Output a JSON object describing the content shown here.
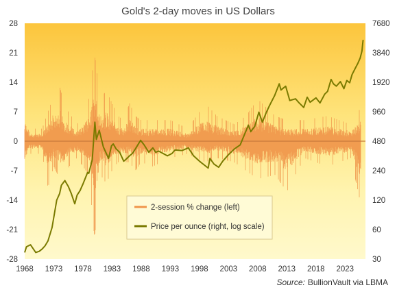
{
  "chart_data": {
    "type": "line",
    "title": "Gold's 2-day moves in US Dollars",
    "x_ticks": [
      "1968",
      "1973",
      "1978",
      "1983",
      "1988",
      "1993",
      "1998",
      "2003",
      "2008",
      "2013",
      "2018",
      "2023"
    ],
    "x_range": [
      1968,
      2026.5
    ],
    "left_axis": {
      "ticks": [
        "28",
        "21",
        "14",
        "7",
        "0",
        "-7",
        "-14",
        "-21",
        "-28"
      ],
      "range": [
        -28,
        28
      ]
    },
    "right_axis": {
      "ticks": [
        "7680",
        "3840",
        "1920",
        "960",
        "480",
        "240",
        "120",
        "60",
        "30"
      ],
      "range": [
        30,
        7680
      ],
      "scale": "log"
    },
    "grid": false,
    "legend_position": "lower-center",
    "series": [
      {
        "name": "2-session % change (left)",
        "axis": "left",
        "color": "#F0954A",
        "style": "oscillating bars",
        "envelope": [
          {
            "year": 1968,
            "max": 8,
            "min": -7
          },
          {
            "year": 1969,
            "max": 3,
            "min": -3
          },
          {
            "year": 1971,
            "max": 3,
            "min": -3
          },
          {
            "year": 1972,
            "max": 7,
            "min": -11
          },
          {
            "year": 1973,
            "max": 11,
            "min": -6
          },
          {
            "year": 1974,
            "max": 13,
            "min": -9
          },
          {
            "year": 1975,
            "max": 8,
            "min": -8
          },
          {
            "year": 1976,
            "max": 6,
            "min": -5
          },
          {
            "year": 1977,
            "max": 4,
            "min": -4
          },
          {
            "year": 1978,
            "max": 6,
            "min": -6
          },
          {
            "year": 1979,
            "max": 10,
            "min": -8
          },
          {
            "year": 1980,
            "max": 20.5,
            "min": -23
          },
          {
            "year": 1981,
            "max": 10,
            "min": -8
          },
          {
            "year": 1982,
            "max": 12,
            "min": -10
          },
          {
            "year": 1983,
            "max": 9,
            "min": -7
          },
          {
            "year": 1984,
            "max": 6,
            "min": -5
          },
          {
            "year": 1985,
            "max": 5,
            "min": -5
          },
          {
            "year": 1986,
            "max": 9,
            "min": -5
          },
          {
            "year": 1987,
            "max": 6,
            "min": -7
          },
          {
            "year": 1988,
            "max": 5,
            "min": -5
          },
          {
            "year": 1990,
            "max": 5,
            "min": -6
          },
          {
            "year": 1993,
            "max": 5,
            "min": -4
          },
          {
            "year": 1996,
            "max": 3,
            "min": -3
          },
          {
            "year": 1999,
            "max": 9,
            "min": -5
          },
          {
            "year": 2001,
            "max": 6,
            "min": -4
          },
          {
            "year": 2004,
            "max": 4,
            "min": -5
          },
          {
            "year": 2006,
            "max": 6,
            "min": -7
          },
          {
            "year": 2008,
            "max": 10,
            "min": -9
          },
          {
            "year": 2011,
            "max": 6,
            "min": -8
          },
          {
            "year": 2013,
            "max": 5,
            "min": -12
          },
          {
            "year": 2016,
            "max": 5,
            "min": -4
          },
          {
            "year": 2020,
            "max": 6,
            "min": -6
          },
          {
            "year": 2024,
            "max": 4,
            "min": -4
          },
          {
            "year": 2025.7,
            "max": 8,
            "min": -15
          }
        ]
      },
      {
        "name": "Price per ounce (right, log scale)",
        "axis": "right",
        "color": "#7A7A00",
        "points": [
          [
            1968.0,
            35
          ],
          [
            1968.3,
            40
          ],
          [
            1969.0,
            42
          ],
          [
            1969.9,
            35
          ],
          [
            1970.5,
            36
          ],
          [
            1971.0,
            38
          ],
          [
            1971.5,
            41
          ],
          [
            1972.0,
            46
          ],
          [
            1972.7,
            63
          ],
          [
            1973.5,
            120
          ],
          [
            1974.0,
            140
          ],
          [
            1974.3,
            170
          ],
          [
            1974.9,
            190
          ],
          [
            1975.5,
            165
          ],
          [
            1976.0,
            140
          ],
          [
            1976.6,
            110
          ],
          [
            1977.0,
            135
          ],
          [
            1977.5,
            150
          ],
          [
            1978.0,
            175
          ],
          [
            1978.8,
            230
          ],
          [
            1979.0,
            225
          ],
          [
            1979.6,
            310
          ],
          [
            1980.05,
            750
          ],
          [
            1980.3,
            500
          ],
          [
            1980.8,
            620
          ],
          [
            1981.5,
            420
          ],
          [
            1982.4,
            320
          ],
          [
            1982.9,
            430
          ],
          [
            1983.2,
            450
          ],
          [
            1983.7,
            400
          ],
          [
            1984.3,
            370
          ],
          [
            1985.0,
            300
          ],
          [
            1985.3,
            310
          ],
          [
            1986.0,
            340
          ],
          [
            1986.5,
            360
          ],
          [
            1987.0,
            400
          ],
          [
            1987.9,
            490
          ],
          [
            1988.5,
            440
          ],
          [
            1989.3,
            370
          ],
          [
            1990.0,
            410
          ],
          [
            1990.5,
            370
          ],
          [
            1991.0,
            380
          ],
          [
            1992.5,
            340
          ],
          [
            1993.3,
            360
          ],
          [
            1993.8,
            390
          ],
          [
            1995.0,
            385
          ],
          [
            1996.1,
            410
          ],
          [
            1997.0,
            340
          ],
          [
            1998.0,
            300
          ],
          [
            1999.5,
            255
          ],
          [
            1999.8,
            320
          ],
          [
            2000.5,
            280
          ],
          [
            2001.3,
            260
          ],
          [
            2002.0,
            300
          ],
          [
            2003.0,
            350
          ],
          [
            2004.0,
            400
          ],
          [
            2005.0,
            440
          ],
          [
            2006.4,
            700
          ],
          [
            2006.8,
            600
          ],
          [
            2007.5,
            680
          ],
          [
            2008.2,
            950
          ],
          [
            2008.8,
            750
          ],
          [
            2009.5,
            950
          ],
          [
            2010.0,
            1100
          ],
          [
            2010.9,
            1400
          ],
          [
            2011.7,
            1850
          ],
          [
            2012.0,
            1600
          ],
          [
            2012.8,
            1750
          ],
          [
            2013.3,
            1380
          ],
          [
            2013.5,
            1250
          ],
          [
            2014.5,
            1300
          ],
          [
            2015.0,
            1200
          ],
          [
            2015.9,
            1060
          ],
          [
            2016.5,
            1350
          ],
          [
            2017.0,
            1200
          ],
          [
            2018.0,
            1330
          ],
          [
            2018.7,
            1180
          ],
          [
            2019.5,
            1450
          ],
          [
            2020.0,
            1550
          ],
          [
            2020.6,
            2050
          ],
          [
            2021.0,
            1850
          ],
          [
            2021.5,
            1750
          ],
          [
            2022.2,
            1950
          ],
          [
            2022.8,
            1650
          ],
          [
            2023.3,
            2000
          ],
          [
            2023.8,
            1900
          ],
          [
            2024.2,
            2300
          ],
          [
            2024.8,
            2700
          ],
          [
            2025.2,
            3000
          ],
          [
            2025.6,
            3400
          ],
          [
            2025.9,
            4000
          ],
          [
            2026.0,
            4600
          ],
          [
            2026.1,
            5200
          ]
        ]
      }
    ],
    "source_label": "Source:",
    "source_text": "BullionVault via LBMA"
  }
}
